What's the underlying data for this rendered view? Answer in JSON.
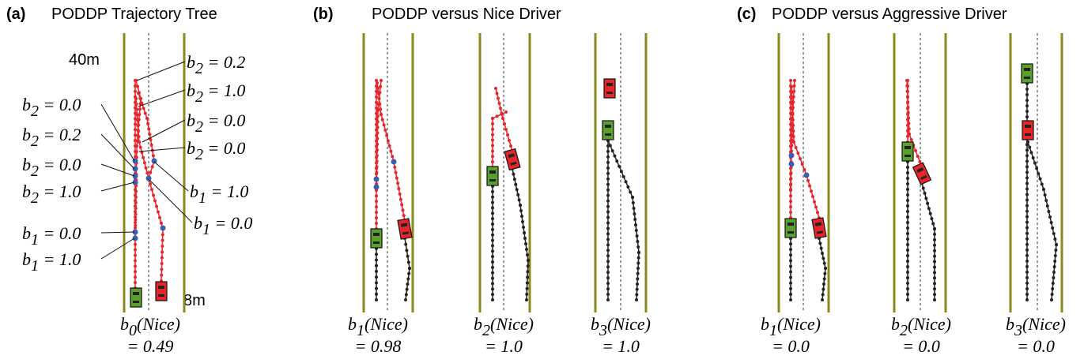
{
  "panels": [
    {
      "label": "(a)",
      "title": "PODDP Trajectory Tree",
      "distance_labels": [
        "40m",
        "8m"
      ],
      "annotations": [
        {
          "var": "b",
          "sub": "2",
          "rest": " = 0.2"
        },
        {
          "var": "b",
          "sub": "2",
          "rest": " = 1.0"
        },
        {
          "var": "b",
          "sub": "2",
          "rest": " = 0.0"
        },
        {
          "var": "b",
          "sub": "2",
          "rest": " = 0.0"
        },
        {
          "var": "b",
          "sub": "2",
          "rest": " = 0.0"
        },
        {
          "var": "b",
          "sub": "2",
          "rest": " = 0.2"
        },
        {
          "var": "b",
          "sub": "2",
          "rest": " = 0.0"
        },
        {
          "var": "b",
          "sub": "2",
          "rest": " = 1.0"
        },
        {
          "var": "b",
          "sub": "1",
          "rest": " = 1.0"
        },
        {
          "var": "b",
          "sub": "1",
          "rest": " = 0.0"
        },
        {
          "var": "b",
          "sub": "1",
          "rest": " = 0.0"
        },
        {
          "var": "b",
          "sub": "1",
          "rest": " = 1.0"
        }
      ],
      "captions": [
        {
          "var": "b",
          "sub": "0",
          "rest": "(Nice)",
          "value": "= 0.49"
        }
      ]
    },
    {
      "label": "(b)",
      "title": "PODDP versus Nice Driver",
      "captions": [
        {
          "var": "b",
          "sub": "1",
          "rest": "(Nice)",
          "value": "= 0.98"
        },
        {
          "var": "b",
          "sub": "2",
          "rest": "(Nice)",
          "value": "= 1.0"
        },
        {
          "var": "b",
          "sub": "3",
          "rest": "(Nice)",
          "value": "= 1.0"
        }
      ]
    },
    {
      "label": "(c)",
      "title": "PODDP versus Aggressive Driver",
      "captions": [
        {
          "var": "b",
          "sub": "1",
          "rest": "(Nice)",
          "value": "= 0.0"
        },
        {
          "var": "b",
          "sub": "2",
          "rest": "(Nice)",
          "value": "= 0.0"
        },
        {
          "var": "b",
          "sub": "3",
          "rest": "(Nice)",
          "value": "= 0.0"
        }
      ]
    }
  ]
}
